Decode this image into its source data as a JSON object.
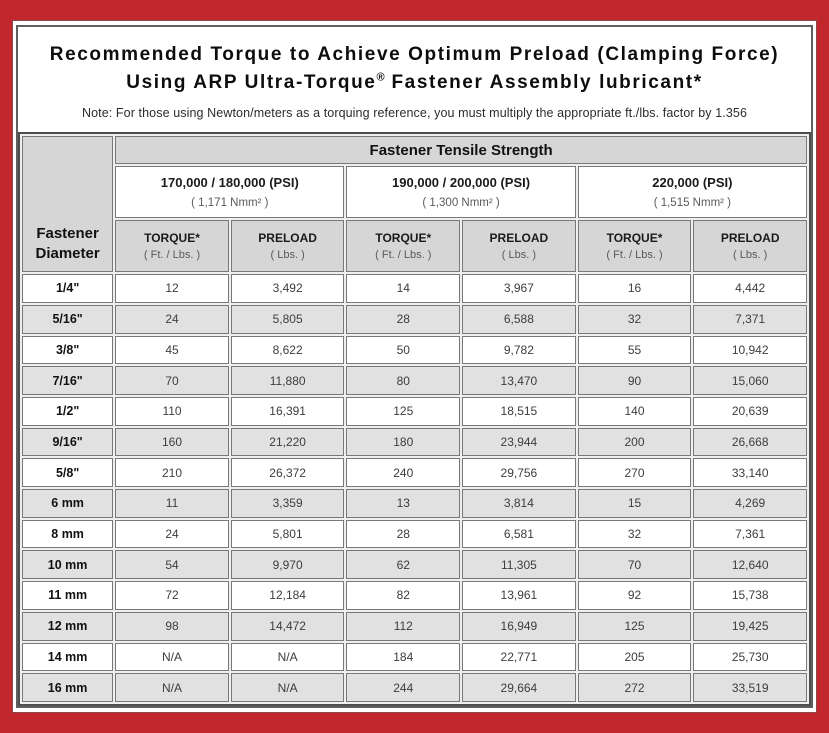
{
  "colors": {
    "frame_red": "#c1272d",
    "header_gray": "#d6d6d6",
    "row_alt_gray": "#e1e1e1",
    "grid_dark": "#4e4e4e"
  },
  "title": {
    "line1": "Recommended Torque to Achieve Optimum Preload (Clamping Force)",
    "line2_before_reg": "Using ARP Ultra-Torque",
    "registered_mark": "®",
    "line2_after_reg": " Fastener Assembly lubricant*"
  },
  "note": "Note: For those using Newton/meters as a torquing reference, you must multiply the appropriate ft./lbs. factor by 1.356",
  "chart_data": {
    "type": "table",
    "title": "Recommended Torque to Achieve Optimum Preload (Clamping Force) Using ARP Ultra-Torque® Fastener Assembly lubricant*",
    "corner_header": "Fastener Diameter",
    "top_header": "Fastener Tensile Strength",
    "strength_groups": [
      {
        "psi_label": "170,000 / 180,000 (PSI)",
        "nmm_label": "( 1,171 Nmm² )"
      },
      {
        "psi_label": "190,000 / 200,000 (PSI)",
        "nmm_label": "( 1,300 Nmm² )"
      },
      {
        "psi_label": "220,000 (PSI)",
        "nmm_label": "( 1,515 Nmm² )"
      }
    ],
    "sub_headers": [
      {
        "label": "TORQUE*",
        "unit": "( Ft. / Lbs. )"
      },
      {
        "label": "PRELOAD",
        "unit": "( Lbs. )"
      },
      {
        "label": "TORQUE*",
        "unit": "( Ft. / Lbs. )"
      },
      {
        "label": "PRELOAD",
        "unit": "( Lbs. )"
      },
      {
        "label": "TORQUE*",
        "unit": "( Ft. / Lbs. )"
      },
      {
        "label": "PRELOAD",
        "unit": "( Lbs. )"
      }
    ],
    "rows": [
      {
        "diameter": "1/4\"",
        "values": [
          "12",
          "3,492",
          "14",
          "3,967",
          "16",
          "4,442"
        ]
      },
      {
        "diameter": "5/16\"",
        "values": [
          "24",
          "5,805",
          "28",
          "6,588",
          "32",
          "7,371"
        ]
      },
      {
        "diameter": "3/8\"",
        "values": [
          "45",
          "8,622",
          "50",
          "9,782",
          "55",
          "10,942"
        ]
      },
      {
        "diameter": "7/16\"",
        "values": [
          "70",
          "11,880",
          "80",
          "13,470",
          "90",
          "15,060"
        ]
      },
      {
        "diameter": "1/2\"",
        "values": [
          "110",
          "16,391",
          "125",
          "18,515",
          "140",
          "20,639"
        ]
      },
      {
        "diameter": "9/16\"",
        "values": [
          "160",
          "21,220",
          "180",
          "23,944",
          "200",
          "26,668"
        ]
      },
      {
        "diameter": "5/8\"",
        "values": [
          "210",
          "26,372",
          "240",
          "29,756",
          "270",
          "33,140"
        ]
      },
      {
        "diameter": "6 mm",
        "values": [
          "11",
          "3,359",
          "13",
          "3,814",
          "15",
          "4,269"
        ]
      },
      {
        "diameter": "8 mm",
        "values": [
          "24",
          "5,801",
          "28",
          "6,581",
          "32",
          "7,361"
        ]
      },
      {
        "diameter": "10 mm",
        "values": [
          "54",
          "9,970",
          "62",
          "11,305",
          "70",
          "12,640"
        ]
      },
      {
        "diameter": "11 mm",
        "values": [
          "72",
          "12,184",
          "82",
          "13,961",
          "92",
          "15,738"
        ]
      },
      {
        "diameter": "12 mm",
        "values": [
          "98",
          "14,472",
          "112",
          "16,949",
          "125",
          "19,425"
        ]
      },
      {
        "diameter": "14 mm",
        "values": [
          "N/A",
          "N/A",
          "184",
          "22,771",
          "205",
          "25,730"
        ]
      },
      {
        "diameter": "16 mm",
        "values": [
          "N/A",
          "N/A",
          "244",
          "29,664",
          "272",
          "33,519"
        ]
      }
    ]
  }
}
